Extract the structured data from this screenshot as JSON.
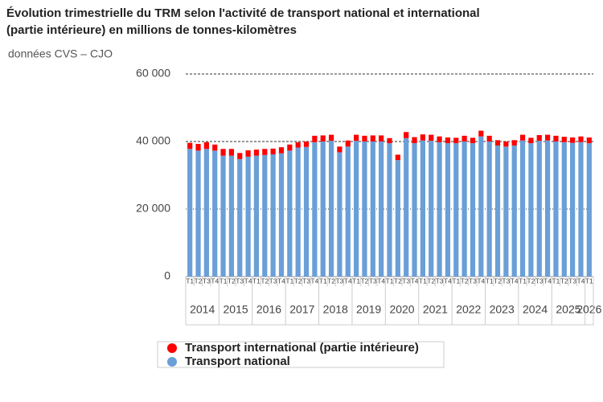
{
  "chart_data": {
    "type": "stacked_bar",
    "title": [
      "Évolution trimestrielle du TRM selon l'activité de transport national et international",
      "(partie intérieure) en millions de tonnes-kilomètres"
    ],
    "subtitle": "données CVS – CJO",
    "categories": [
      "T1",
      "T2",
      "T3",
      "T4",
      "T1",
      "T2",
      "T3",
      "T4",
      "T1",
      "T2",
      "T3",
      "T4",
      "T1",
      "T2",
      "T3",
      "T4",
      "T1",
      "T2",
      "T3",
      "T4",
      "T1",
      "T2",
      "T3",
      "T4",
      "T1",
      "T2",
      "T3",
      "T4",
      "T1",
      "T2",
      "T3",
      "T4",
      "T1",
      "T2",
      "T3",
      "T4",
      "T1",
      "T2",
      "T3",
      "T4",
      "T1",
      "T2",
      "T3",
      "T4",
      "T1",
      "T2",
      "T3",
      "T4",
      "T1"
    ],
    "years": [
      "2014",
      "2015",
      "2016",
      "2017",
      "2018",
      "2019",
      "2020",
      "2021",
      "2022",
      "2023",
      "2024",
      "2025",
      "2026"
    ],
    "series": [
      {
        "name": "Transport national",
        "color": "#6a9fd8",
        "values": [
          37800,
          37300,
          37800,
          37300,
          35800,
          35800,
          34800,
          35500,
          35800,
          36000,
          36200,
          36500,
          37300,
          38200,
          38400,
          39800,
          40000,
          40200,
          36800,
          38500,
          40200,
          40000,
          40000,
          40000,
          39500,
          34500,
          41000,
          39500,
          40300,
          40200,
          39800,
          39500,
          39500,
          40000,
          39500,
          41500,
          40000,
          38800,
          38500,
          38800,
          40300,
          39500,
          40200,
          40300,
          40000,
          39800,
          39600,
          39800,
          39500
        ]
      },
      {
        "name": "Transport international (partie intérieure)",
        "color": "#ff0000",
        "values": [
          1800,
          2000,
          2000,
          1800,
          2000,
          2000,
          1800,
          1900,
          1800,
          1800,
          1700,
          1800,
          1800,
          1600,
          1600,
          1900,
          1800,
          1800,
          1700,
          1800,
          1800,
          1700,
          1800,
          1800,
          1500,
          1600,
          1800,
          1800,
          1800,
          1800,
          1700,
          1700,
          1600,
          1700,
          1600,
          1700,
          1700,
          1600,
          1500,
          1600,
          1700,
          1600,
          1700,
          1700,
          1700,
          1600,
          1600,
          1700,
          1700
        ]
      }
    ],
    "ylim": [
      0,
      60000
    ],
    "yticks": [
      0,
      {
        "value": 20000,
        "label": "20 000"
      },
      {
        "value": 40000,
        "label": "40 000"
      },
      {
        "value": 60000,
        "label": "60 000"
      }
    ],
    "grid": true
  }
}
